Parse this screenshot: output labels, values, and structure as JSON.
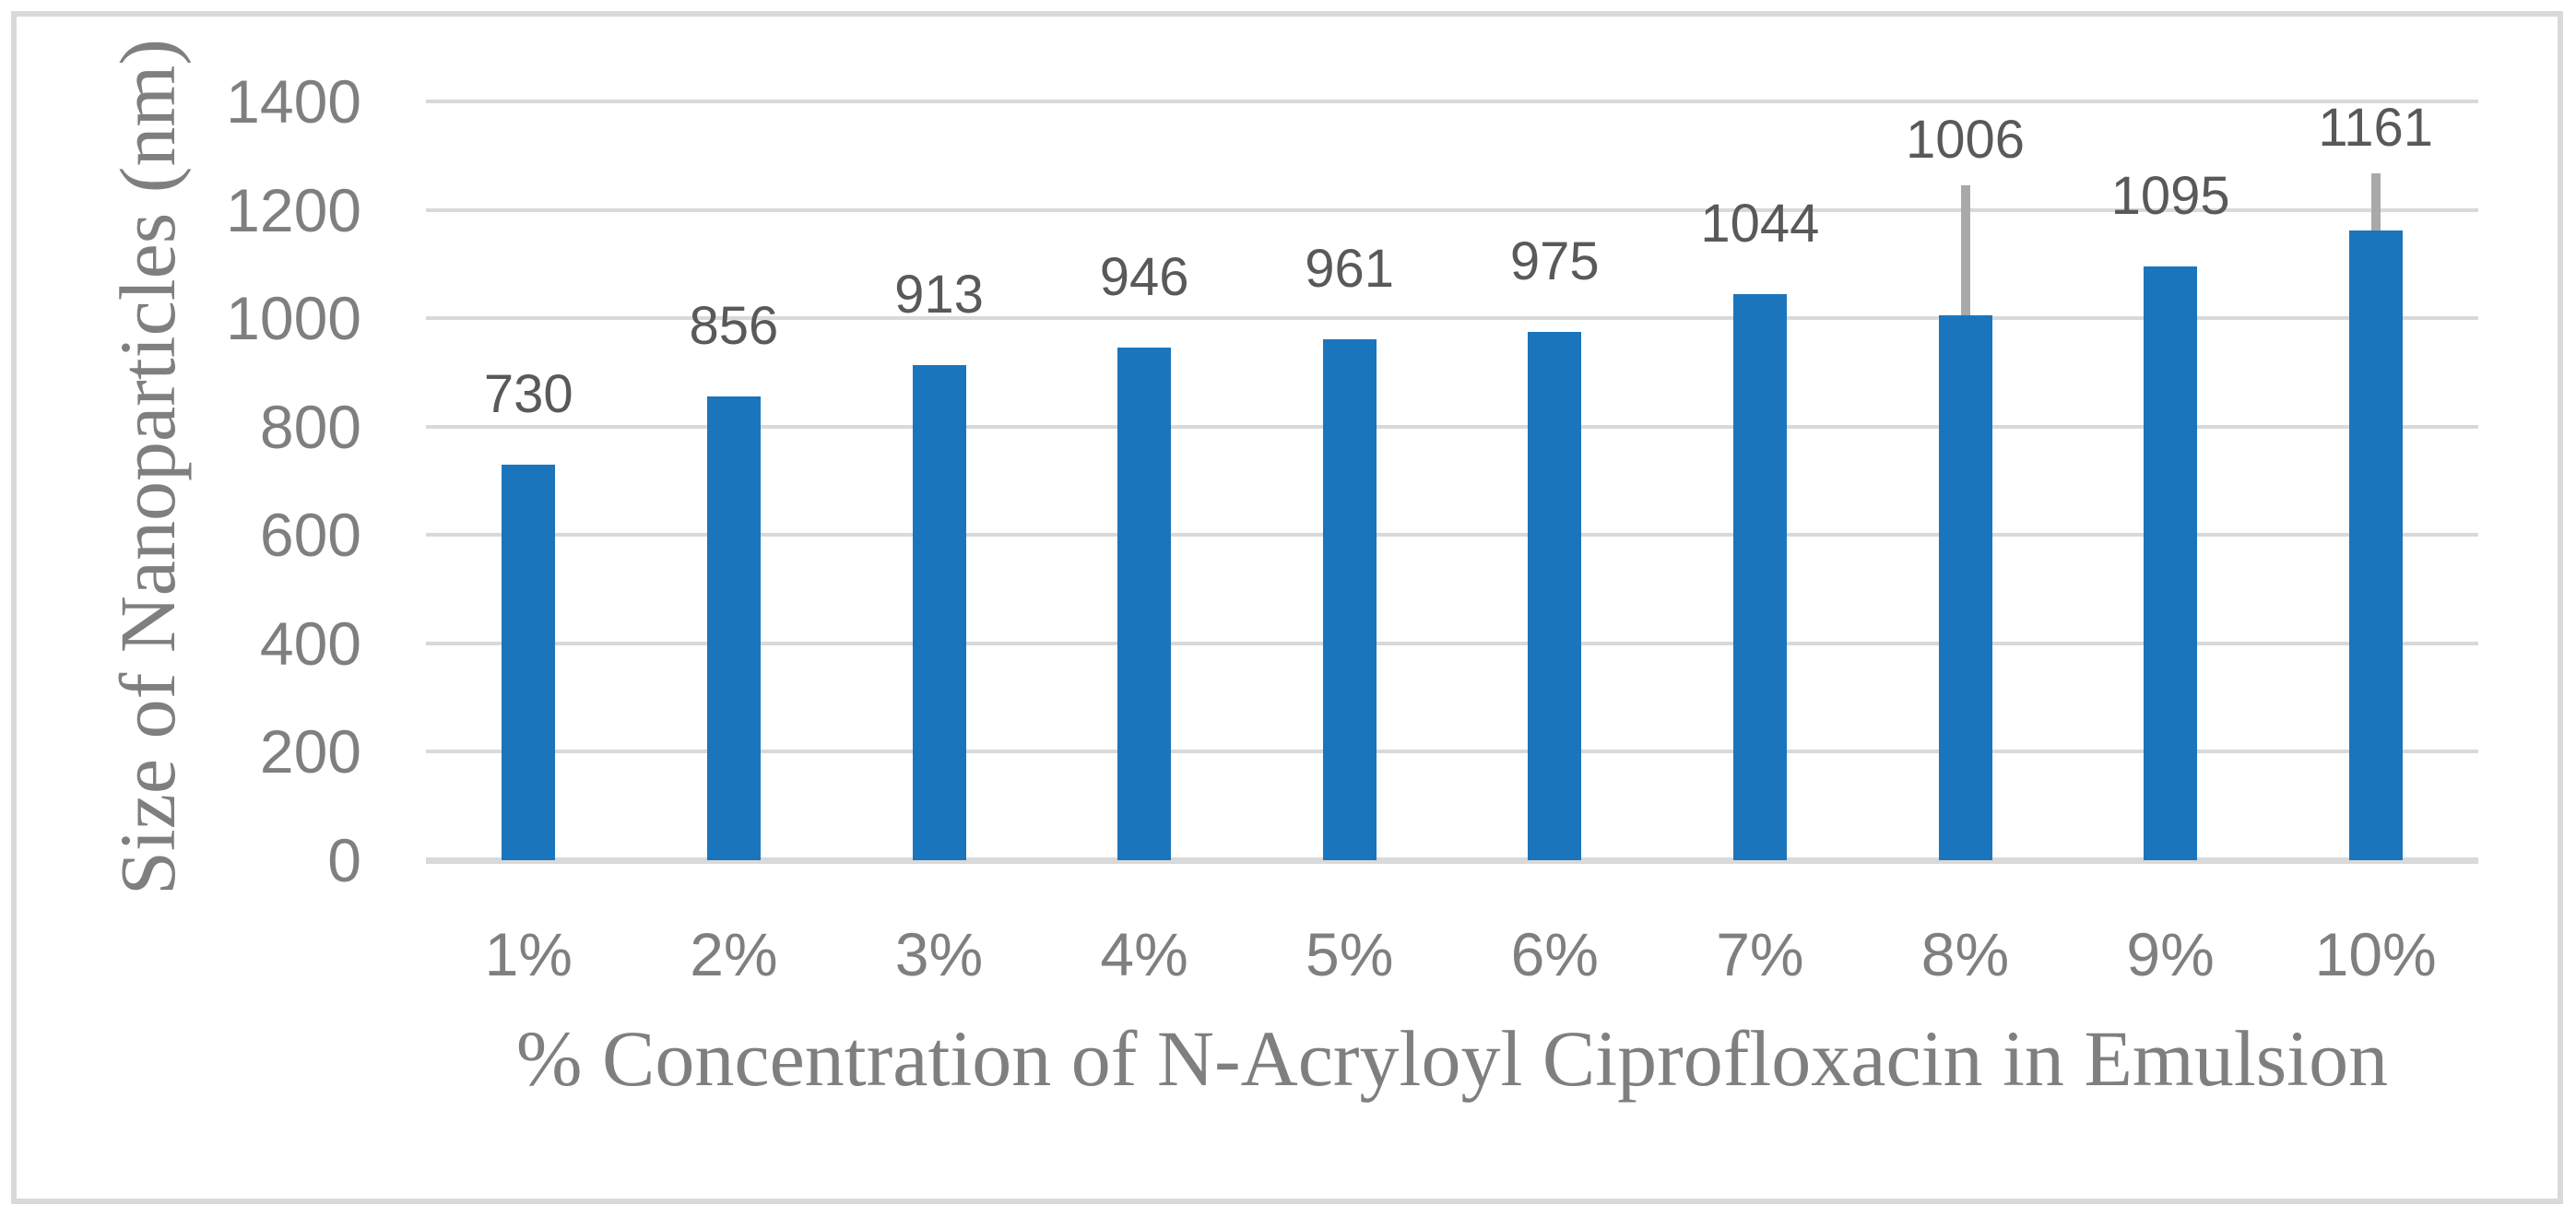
{
  "chart_data": {
    "type": "bar",
    "title": "",
    "categories": [
      "1%",
      "2%",
      "3%",
      "4%",
      "5%",
      "6%",
      "7%",
      "8%",
      "9%",
      "10%"
    ],
    "values": [
      730,
      856,
      913,
      946,
      961,
      975,
      1044,
      1006,
      1095,
      1161
    ],
    "data_labels": [
      "730",
      "856",
      "913",
      "946",
      "961",
      "975",
      "1044",
      "1006",
      "1095",
      "1161"
    ],
    "error_plus": [
      0,
      0,
      0,
      0,
      0,
      0,
      0,
      240,
      0,
      106
    ],
    "xlabel": "% Concentration of N-Acryloyl Ciprofloxacin in Emulsion",
    "ylabel": "Size of Nanoparticles (nm)",
    "ylim": [
      0,
      1400
    ],
    "ytick_interval": 200,
    "ytick_labels": [
      "0",
      "200",
      "400",
      "600",
      "800",
      "1000",
      "1200",
      "1400"
    ],
    "grid": true,
    "legend": false
  },
  "colors": {
    "bar": "#1b75bc",
    "gridline": "#d9d9d9",
    "baseline": "#d9d9d9",
    "error_bar": "#a9a9a9",
    "tick_text": "#7f7f7f",
    "data_label_text": "#595959",
    "axis_title_text": "#7f7f7f",
    "frame_border": "#d9d9d9",
    "background": "#ffffff"
  }
}
